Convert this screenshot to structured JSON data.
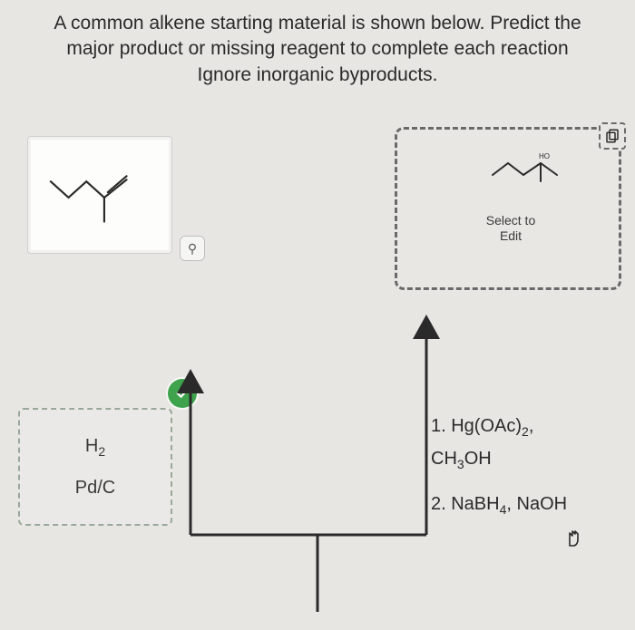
{
  "question": {
    "line1": "A common alkene starting material is shown below. Predict the",
    "line2": "major product or missing reagent to complete each reaction",
    "line3": "Ignore inorganic byproducts."
  },
  "startingMaterial": {
    "stroke": "#2a2a2a",
    "strokeWidth": 2.2
  },
  "zoom": {
    "glyph": "⚲"
  },
  "leftReagent": {
    "line1_html": "H<sub>2</sub>",
    "line2": "Pd/C",
    "borderColor": "#9aa89a"
  },
  "checkBadge": {
    "color": "#3fa34d"
  },
  "productBox": {
    "selectText": "Select to Edit",
    "mol": {
      "stroke": "#2a2a2a",
      "label": "HO"
    },
    "borderColor": "#6a6a6a"
  },
  "rightReagent": {
    "step1_html": "1. Hg(OAc)<sub>2</sub>,",
    "step1b_html": "CH<sub>3</sub>OH",
    "step2_html": "2. NaBH<sub>4</sub>, NaOH"
  },
  "arrows": {
    "stroke": "#2a2a2a",
    "strokeWidth": 3
  },
  "colors": {
    "background": "#e8e6e3",
    "text": "#2a2a2a"
  }
}
